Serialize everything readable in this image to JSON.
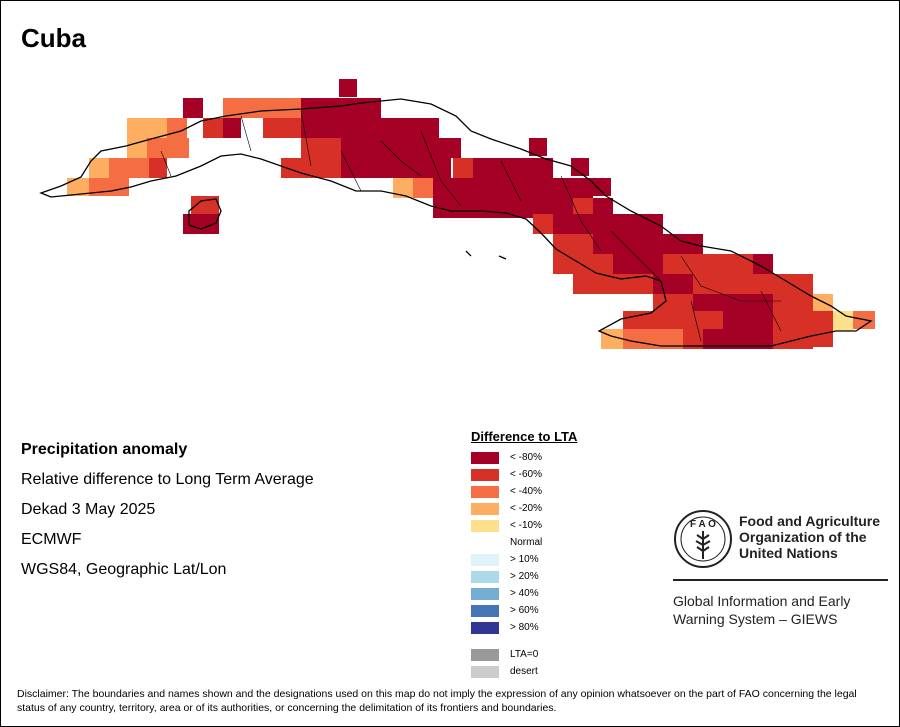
{
  "title": "Cuba",
  "info": {
    "title": "Precipitation anomaly",
    "line1": "Relative difference to Long Term Average",
    "line2": "Dekad 3 May 2025",
    "line3": "ECMWF",
    "line4": "WGS84, Geographic Lat/Lon"
  },
  "legend": {
    "title": "Difference to LTA",
    "items": [
      {
        "label": "< -80%",
        "color": "#a50026"
      },
      {
        "label": "< -60%",
        "color": "#d73027"
      },
      {
        "label": "< -40%",
        "color": "#f46d43"
      },
      {
        "label": "< -20%",
        "color": "#fdae61"
      },
      {
        "label": "< -10%",
        "color": "#fee08b"
      },
      {
        "label": "Normal",
        "color": "#ffffff"
      },
      {
        "label": "> 10%",
        "color": "#e0f3f8"
      },
      {
        "label": "> 20%",
        "color": "#abd9e9"
      },
      {
        "label": "> 40%",
        "color": "#74add1"
      },
      {
        "label": "> 60%",
        "color": "#4575b4"
      },
      {
        "label": "> 80%",
        "color": "#313695"
      }
    ],
    "extra": [
      {
        "label": "LTA=0",
        "color": "#999999"
      },
      {
        "label": "desert",
        "color": "#cccccc"
      }
    ]
  },
  "org": {
    "name_line1": "Food and Agriculture",
    "name_line2": "Organization of the",
    "name_line3": "United Nations",
    "giews_line1": "Global Information and Early",
    "giews_line2": "Warning System – GIEWS"
  },
  "disclaimer": "Disclaimer: The boundaries and names shown and the designations used on this map do not imply the expression of any opinion whatsoever on the part of FAO concerning the legal status of any country, territory, area or of its authorities, or concerning the delimitation of its frontiers and boundaries."
}
